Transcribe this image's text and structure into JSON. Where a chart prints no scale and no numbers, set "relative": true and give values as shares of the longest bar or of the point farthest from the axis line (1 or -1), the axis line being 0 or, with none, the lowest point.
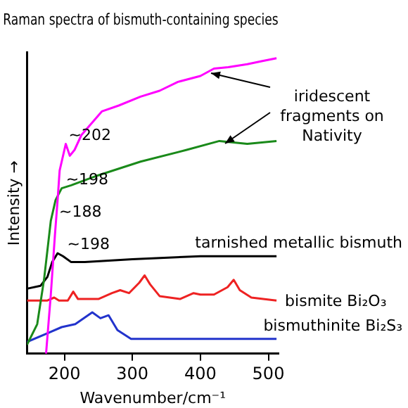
{
  "chart_data": {
    "type": "line",
    "title": "Raman spectra of bismuth-containing species",
    "xlabel": "Wavenumber/cm⁻¹",
    "ylabel": "Intensity →",
    "relative": true,
    "xlim": [
      145,
      515
    ],
    "xticks": [
      200,
      300,
      400,
      500
    ],
    "grid": false,
    "legend": false,
    "series": [
      {
        "color": "#ff00ff",
        "x": [
          173,
          180,
          186,
          190,
          193,
          197,
          202,
          208,
          215,
          225,
          240,
          255,
          280,
          312,
          340,
          367,
          400,
          420,
          441,
          469,
          490,
          512
        ],
        "values": [
          0,
          0.2,
          0.4,
          0.52,
          0.62,
          0.66,
          0.71,
          0.67,
          0.69,
          0.74,
          0.78,
          0.82,
          0.84,
          0.87,
          0.89,
          0.92,
          0.94,
          0.965,
          0.97,
          0.98,
          0.99,
          1.0
        ]
      },
      {
        "color": "#1a8a1a",
        "x": [
          145,
          160,
          170,
          180,
          187,
          196,
          210,
          245,
          312,
          380,
          428,
          469,
          512
        ],
        "values": [
          0.03,
          0.1,
          0.25,
          0.45,
          0.52,
          0.56,
          0.57,
          0.6,
          0.65,
          0.69,
          0.72,
          0.71,
          0.72
        ]
      },
      {
        "name": "tarnished metallic bismuth",
        "color": "#000000",
        "x": [
          145,
          165,
          175,
          182,
          190,
          198,
          210,
          230,
          300,
          400,
          512
        ],
        "values": [
          0.22,
          0.23,
          0.26,
          0.31,
          0.34,
          0.33,
          0.31,
          0.31,
          0.32,
          0.33,
          0.33
        ]
      },
      {
        "name": "bismite Bi₂O₃",
        "color": "#ee2222",
        "x": [
          145,
          175,
          185,
          192,
          205,
          213,
          220,
          250,
          270,
          282,
          295,
          310,
          318,
          326,
          340,
          370,
          390,
          400,
          420,
          440,
          449,
          458,
          475,
          512
        ],
        "values": [
          0.18,
          0.18,
          0.19,
          0.18,
          0.18,
          0.21,
          0.185,
          0.185,
          0.205,
          0.215,
          0.205,
          0.24,
          0.265,
          0.235,
          0.195,
          0.185,
          0.205,
          0.2,
          0.2,
          0.225,
          0.25,
          0.215,
          0.19,
          0.18
        ]
      },
      {
        "name": "bismuthinite Bi₂S₃",
        "color": "#2233cc",
        "x": [
          145,
          176,
          196,
          216,
          241,
          253,
          265,
          278,
          298,
          400,
          512
        ],
        "values": [
          0.04,
          0.07,
          0.09,
          0.1,
          0.14,
          0.12,
          0.13,
          0.08,
          0.05,
          0.05,
          0.05
        ]
      }
    ],
    "annotations": [
      {
        "text": "~202",
        "x": 200,
        "y": 0.71
      },
      {
        "text": "~198",
        "x": 196,
        "y": 0.56
      },
      {
        "text": "~188",
        "x": 186,
        "y": 0.45
      },
      {
        "text": "~198",
        "x": 198,
        "y": 0.34
      },
      "iridescent fragments on Nativity"
    ]
  }
}
